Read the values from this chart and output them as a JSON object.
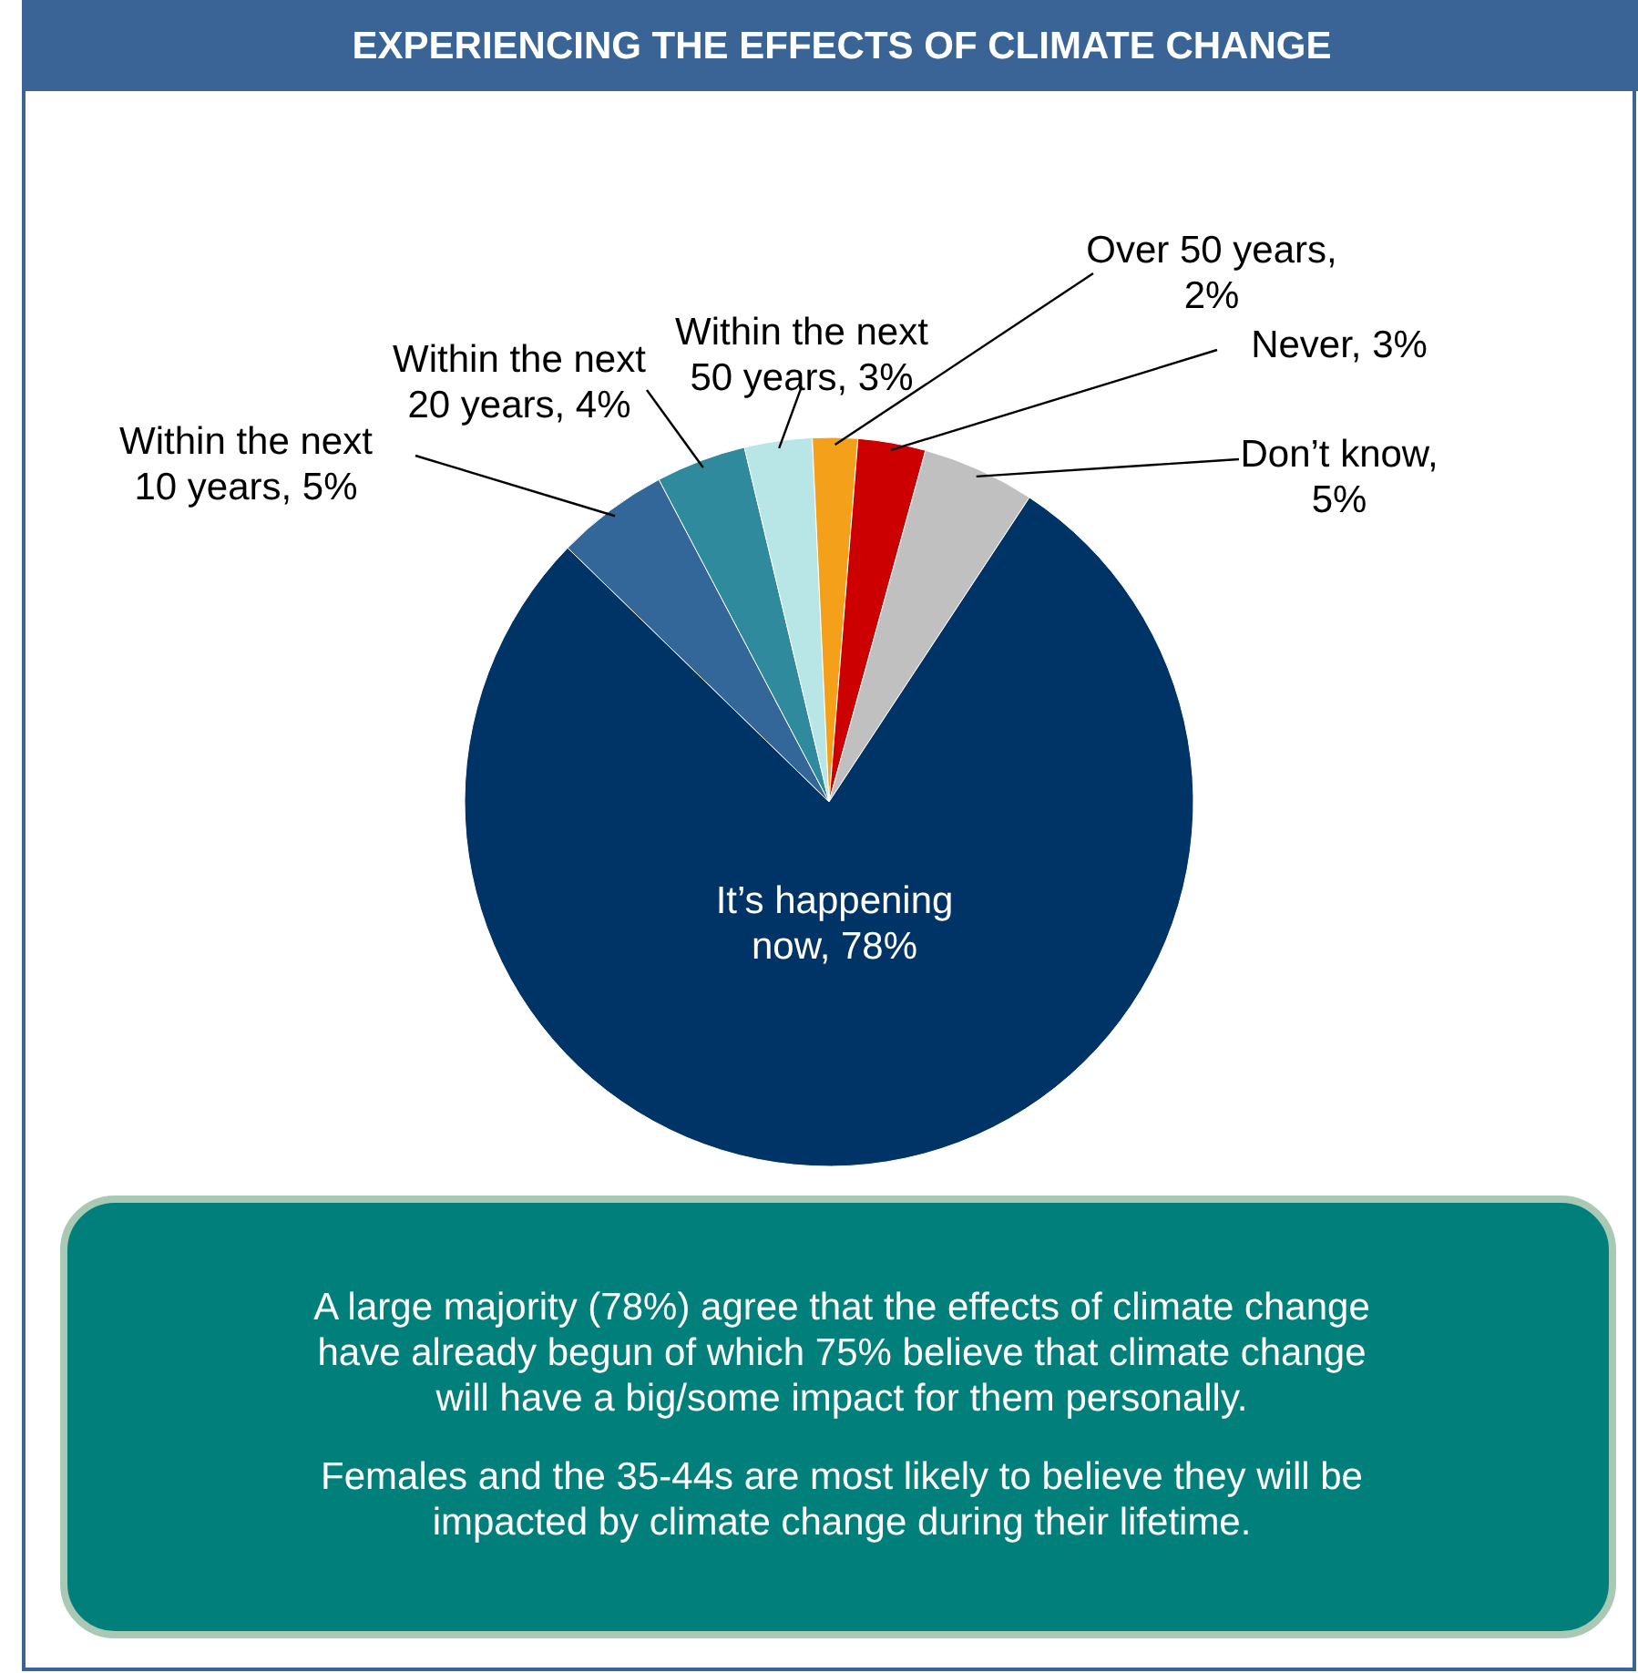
{
  "chart_data": {
    "type": "pie",
    "title": "EXPERIENCING THE EFFECTS OF CLIMATE CHANGE",
    "categories": [
      "Within the next 10 years, 5%",
      "Within the next 20 years, 4%",
      "Within the next 50 years, 3%",
      "Over 50 years, 2%",
      "Never, 3%",
      "Don’t know, 5%",
      "It’s happening now, 78%"
    ],
    "values": [
      5,
      4,
      3,
      2,
      3,
      5,
      78
    ],
    "colors": [
      "#336699",
      "#2e8a9c",
      "#b8e6e6",
      "#f5a01a",
      "#cc0000",
      "#c0c0c0",
      "#003366"
    ],
    "annotations": [
      "A large majority (78%) agree that the effects of climate change have already begun of which 75% believe that climate change will have a big/some impact for them personally.",
      "Females and the 35-44s are most likely to believe they will be impacted by climate change during their lifetime."
    ]
  }
}
